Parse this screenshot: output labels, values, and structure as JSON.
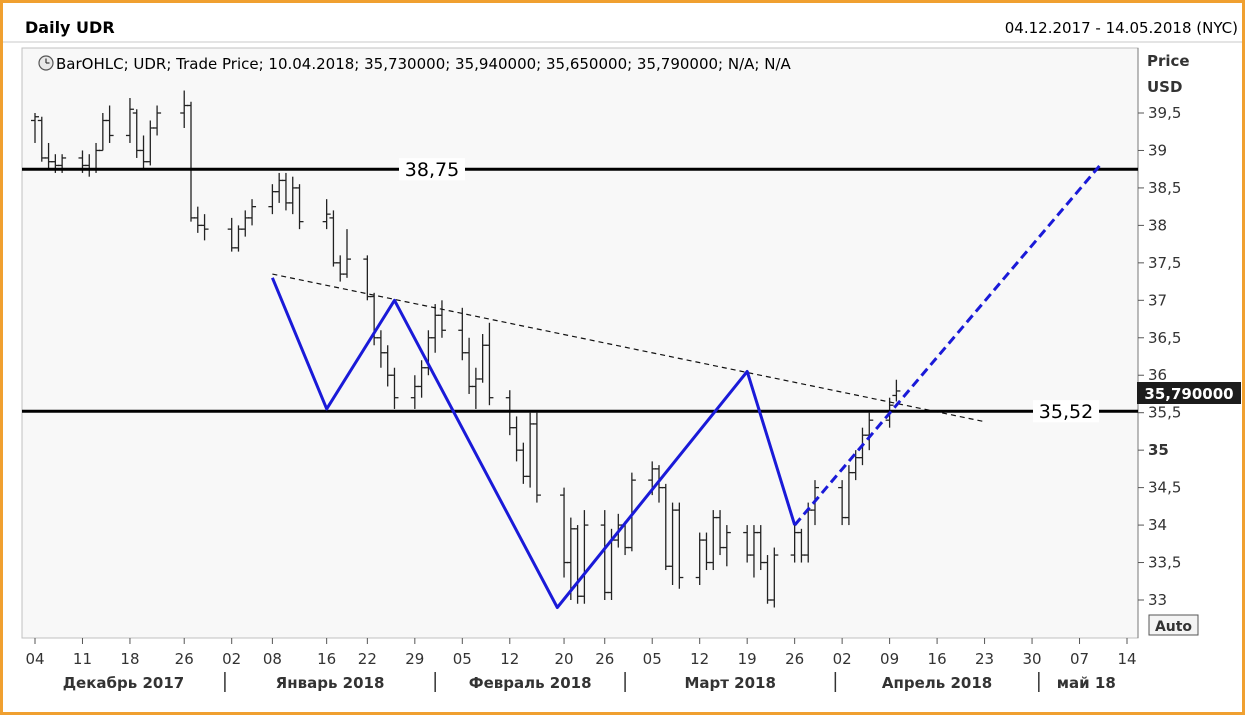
{
  "header": {
    "title": "Daily UDR",
    "date_range": "04.12.2017 - 14.05.2018 (NYC)"
  },
  "legend": {
    "icon": "clock-icon",
    "text": "BarOHLC; UDR; Trade Price; 10.04.2018; 35,730000; 35,940000; 35,650000; 35,790000; N/A; N/A"
  },
  "axis": {
    "price_label": "Price",
    "currency_label": "USD",
    "auto_label": "Auto",
    "last_price_label": "35,790000",
    "y_ticks": [
      {
        "value": 39.5,
        "label": "39,5",
        "bold": false
      },
      {
        "value": 39,
        "label": "39",
        "bold": false
      },
      {
        "value": 38.5,
        "label": "38,5",
        "bold": false
      },
      {
        "value": 38,
        "label": "38",
        "bold": false
      },
      {
        "value": 37.5,
        "label": "37,5",
        "bold": false
      },
      {
        "value": 37,
        "label": "37",
        "bold": false
      },
      {
        "value": 36.5,
        "label": "36,5",
        "bold": false
      },
      {
        "value": 36,
        "label": "36",
        "bold": false
      },
      {
        "value": 35.5,
        "label": "35,5",
        "bold": false
      },
      {
        "value": 35,
        "label": "35",
        "bold": true
      },
      {
        "value": 34.5,
        "label": "34,5",
        "bold": false
      },
      {
        "value": 34,
        "label": "34",
        "bold": false
      },
      {
        "value": 33.5,
        "label": "33,5",
        "bold": false
      },
      {
        "value": 33,
        "label": "33",
        "bold": false
      }
    ],
    "x_ticks": [
      {
        "date": "2017-12-04",
        "label": "04"
      },
      {
        "date": "2017-12-11",
        "label": "11"
      },
      {
        "date": "2017-12-18",
        "label": "18"
      },
      {
        "date": "2017-12-26",
        "label": "26"
      },
      {
        "date": "2018-01-02",
        "label": "02"
      },
      {
        "date": "2018-01-08",
        "label": "08"
      },
      {
        "date": "2018-01-16",
        "label": "16"
      },
      {
        "date": "2018-01-22",
        "label": "22"
      },
      {
        "date": "2018-01-29",
        "label": "29"
      },
      {
        "date": "2018-02-05",
        "label": "05"
      },
      {
        "date": "2018-02-12",
        "label": "12"
      },
      {
        "date": "2018-02-20",
        "label": "20"
      },
      {
        "date": "2018-02-26",
        "label": "26"
      },
      {
        "date": "2018-03-05",
        "label": "05"
      },
      {
        "date": "2018-03-12",
        "label": "12"
      },
      {
        "date": "2018-03-19",
        "label": "19"
      },
      {
        "date": "2018-03-26",
        "label": "26"
      },
      {
        "date": "2018-04-02",
        "label": "02"
      },
      {
        "date": "2018-04-09",
        "label": "09"
      },
      {
        "date": "2018-04-16",
        "label": "16"
      },
      {
        "date": "2018-04-23",
        "label": "23"
      },
      {
        "date": "2018-04-30",
        "label": "30"
      },
      {
        "date": "2018-05-07",
        "label": "07"
      },
      {
        "date": "2018-05-14",
        "label": "14"
      }
    ],
    "months": [
      {
        "label": "Декабрь 2017",
        "start": "2017-12-01",
        "end": "2018-01-01"
      },
      {
        "label": "Январь 2018",
        "start": "2018-01-01",
        "end": "2018-02-01"
      },
      {
        "label": "Февраль 2018",
        "start": "2018-02-01",
        "end": "2018-03-01"
      },
      {
        "label": "Март 2018",
        "start": "2018-03-01",
        "end": "2018-04-01"
      },
      {
        "label": "Апрель 2018",
        "start": "2018-04-01",
        "end": "2018-05-01"
      },
      {
        "label": "май 18",
        "start": "2018-05-01",
        "end": "2018-05-15"
      }
    ]
  },
  "colors": {
    "frame": "#f0a030",
    "bars": "#222222",
    "pattern": "#1a1ad8",
    "levels": "#000000"
  },
  "chart_data": {
    "type": "ohlc-bar",
    "instrument": "UDR",
    "x_range": [
      "2017-12-04",
      "2018-05-14"
    ],
    "ylim": [
      32.8,
      39.9
    ],
    "grid": false,
    "bars": [
      {
        "d": "2017-12-04",
        "o": 39.4,
        "h": 39.5,
        "l": 39.1,
        "c": 39.45
      },
      {
        "d": "2017-12-05",
        "o": 39.4,
        "h": 39.45,
        "l": 38.85,
        "c": 38.9
      },
      {
        "d": "2017-12-06",
        "o": 38.9,
        "h": 39.1,
        "l": 38.75,
        "c": 38.85
      },
      {
        "d": "2017-12-07",
        "o": 38.85,
        "h": 38.95,
        "l": 38.7,
        "c": 38.8
      },
      {
        "d": "2017-12-08",
        "o": 38.8,
        "h": 38.95,
        "l": 38.7,
        "c": 38.9
      },
      {
        "d": "2017-12-11",
        "o": 38.9,
        "h": 39.0,
        "l": 38.7,
        "c": 38.8
      },
      {
        "d": "2017-12-12",
        "o": 38.8,
        "h": 38.95,
        "l": 38.65,
        "c": 38.75
      },
      {
        "d": "2017-12-13",
        "o": 38.75,
        "h": 39.1,
        "l": 38.7,
        "c": 39.0
      },
      {
        "d": "2017-12-14",
        "o": 39.0,
        "h": 39.5,
        "l": 39.0,
        "c": 39.4
      },
      {
        "d": "2017-12-15",
        "o": 39.4,
        "h": 39.6,
        "l": 39.1,
        "c": 39.2
      },
      {
        "d": "2017-12-18",
        "o": 39.2,
        "h": 39.7,
        "l": 39.1,
        "c": 39.55
      },
      {
        "d": "2017-12-19",
        "o": 39.5,
        "h": 39.55,
        "l": 38.9,
        "c": 39.0
      },
      {
        "d": "2017-12-20",
        "o": 39.0,
        "h": 39.2,
        "l": 38.75,
        "c": 38.85
      },
      {
        "d": "2017-12-21",
        "o": 38.85,
        "h": 39.4,
        "l": 38.8,
        "c": 39.3
      },
      {
        "d": "2017-12-22",
        "o": 39.3,
        "h": 39.6,
        "l": 39.2,
        "c": 39.5
      },
      {
        "d": "2017-12-26",
        "o": 39.5,
        "h": 39.8,
        "l": 39.3,
        "c": 39.6
      },
      {
        "d": "2017-12-27",
        "o": 39.6,
        "h": 39.65,
        "l": 38.05,
        "c": 38.1
      },
      {
        "d": "2017-12-28",
        "o": 38.1,
        "h": 38.25,
        "l": 37.9,
        "c": 38.0
      },
      {
        "d": "2017-12-29",
        "o": 38.0,
        "h": 38.15,
        "l": 37.8,
        "c": 37.95
      },
      {
        "d": "2018-01-02",
        "o": 37.95,
        "h": 38.1,
        "l": 37.65,
        "c": 37.7
      },
      {
        "d": "2018-01-03",
        "o": 37.7,
        "h": 38.0,
        "l": 37.65,
        "c": 37.95
      },
      {
        "d": "2018-01-04",
        "o": 37.95,
        "h": 38.2,
        "l": 37.85,
        "c": 38.1
      },
      {
        "d": "2018-01-05",
        "o": 38.1,
        "h": 38.35,
        "l": 38.0,
        "c": 38.25
      },
      {
        "d": "2018-01-08",
        "o": 38.25,
        "h": 38.55,
        "l": 38.15,
        "c": 38.45
      },
      {
        "d": "2018-01-09",
        "o": 38.45,
        "h": 38.7,
        "l": 38.3,
        "c": 38.6
      },
      {
        "d": "2018-01-10",
        "o": 38.6,
        "h": 38.7,
        "l": 38.2,
        "c": 38.3
      },
      {
        "d": "2018-01-11",
        "o": 38.3,
        "h": 38.65,
        "l": 38.15,
        "c": 38.5
      },
      {
        "d": "2018-01-12",
        "o": 38.5,
        "h": 38.55,
        "l": 37.95,
        "c": 38.05
      },
      {
        "d": "2018-01-16",
        "o": 38.05,
        "h": 38.35,
        "l": 37.95,
        "c": 38.15
      },
      {
        "d": "2018-01-17",
        "o": 38.1,
        "h": 38.2,
        "l": 37.45,
        "c": 37.5
      },
      {
        "d": "2018-01-18",
        "o": 37.5,
        "h": 37.6,
        "l": 37.25,
        "c": 37.35
      },
      {
        "d": "2018-01-19",
        "o": 37.35,
        "h": 37.95,
        "l": 37.3,
        "c": 37.55
      },
      {
        "d": "2018-01-22",
        "o": 37.55,
        "h": 37.6,
        "l": 37.0,
        "c": 37.05
      },
      {
        "d": "2018-01-23",
        "o": 37.05,
        "h": 37.1,
        "l": 36.4,
        "c": 36.5
      },
      {
        "d": "2018-01-24",
        "o": 36.5,
        "h": 36.6,
        "l": 36.1,
        "c": 36.3
      },
      {
        "d": "2018-01-25",
        "o": 36.3,
        "h": 36.4,
        "l": 35.85,
        "c": 36.0
      },
      {
        "d": "2018-01-26",
        "o": 36.0,
        "h": 36.1,
        "l": 35.55,
        "c": 35.7
      },
      {
        "d": "2018-01-29",
        "o": 35.7,
        "h": 36.0,
        "l": 35.55,
        "c": 35.85
      },
      {
        "d": "2018-01-30",
        "o": 35.85,
        "h": 36.2,
        "l": 35.7,
        "c": 36.1
      },
      {
        "d": "2018-01-31",
        "o": 36.1,
        "h": 36.6,
        "l": 36.0,
        "c": 36.5
      },
      {
        "d": "2018-02-01",
        "o": 36.5,
        "h": 36.95,
        "l": 36.3,
        "c": 36.8
      },
      {
        "d": "2018-02-02",
        "o": 36.8,
        "h": 37.0,
        "l": 36.5,
        "c": 36.6
      },
      {
        "d": "2018-02-05",
        "o": 36.6,
        "h": 36.9,
        "l": 36.2,
        "c": 36.3
      },
      {
        "d": "2018-02-06",
        "o": 36.3,
        "h": 36.5,
        "l": 35.75,
        "c": 35.85
      },
      {
        "d": "2018-02-07",
        "o": 35.85,
        "h": 36.1,
        "l": 35.55,
        "c": 35.95
      },
      {
        "d": "2018-02-08",
        "o": 35.95,
        "h": 36.55,
        "l": 35.9,
        "c": 36.4
      },
      {
        "d": "2018-02-09",
        "o": 36.4,
        "h": 36.7,
        "l": 35.6,
        "c": 35.7
      },
      {
        "d": "2018-02-12",
        "o": 35.7,
        "h": 35.8,
        "l": 35.2,
        "c": 35.3
      },
      {
        "d": "2018-02-13",
        "o": 35.3,
        "h": 35.45,
        "l": 34.85,
        "c": 35.0
      },
      {
        "d": "2018-02-14",
        "o": 35.0,
        "h": 35.1,
        "l": 34.55,
        "c": 34.65
      },
      {
        "d": "2018-02-15",
        "o": 34.65,
        "h": 35.5,
        "l": 34.5,
        "c": 35.35
      },
      {
        "d": "2018-02-16",
        "o": 35.35,
        "h": 35.5,
        "l": 34.3,
        "c": 34.4
      },
      {
        "d": "2018-02-20",
        "o": 34.4,
        "h": 34.5,
        "l": 33.3,
        "c": 33.5
      },
      {
        "d": "2018-02-21",
        "o": 33.5,
        "h": 34.1,
        "l": 33.0,
        "c": 33.95
      },
      {
        "d": "2018-02-22",
        "o": 33.95,
        "h": 34.0,
        "l": 32.95,
        "c": 33.05
      },
      {
        "d": "2018-02-23",
        "o": 33.05,
        "h": 34.2,
        "l": 32.95,
        "c": 34.0
      },
      {
        "d": "2018-02-26",
        "o": 34.0,
        "h": 34.2,
        "l": 33.0,
        "c": 33.1
      },
      {
        "d": "2018-02-27",
        "o": 33.1,
        "h": 33.95,
        "l": 33.0,
        "c": 33.8
      },
      {
        "d": "2018-02-28",
        "o": 33.8,
        "h": 34.15,
        "l": 33.7,
        "c": 34.0
      },
      {
        "d": "2018-03-01",
        "o": 34.0,
        "h": 34.05,
        "l": 33.6,
        "c": 33.7
      },
      {
        "d": "2018-03-02",
        "o": 33.7,
        "h": 34.7,
        "l": 33.65,
        "c": 34.6
      },
      {
        "d": "2018-03-05",
        "o": 34.6,
        "h": 34.85,
        "l": 34.4,
        "c": 34.75
      },
      {
        "d": "2018-03-06",
        "o": 34.75,
        "h": 34.8,
        "l": 34.3,
        "c": 34.5
      },
      {
        "d": "2018-03-07",
        "o": 34.5,
        "h": 34.55,
        "l": 33.4,
        "c": 33.45
      },
      {
        "d": "2018-03-08",
        "o": 33.45,
        "h": 34.3,
        "l": 33.2,
        "c": 34.2
      },
      {
        "d": "2018-03-09",
        "o": 34.2,
        "h": 34.3,
        "l": 33.15,
        "c": 33.3
      },
      {
        "d": "2018-03-12",
        "o": 33.3,
        "h": 33.9,
        "l": 33.2,
        "c": 33.8
      },
      {
        "d": "2018-03-13",
        "o": 33.8,
        "h": 33.9,
        "l": 33.4,
        "c": 33.5
      },
      {
        "d": "2018-03-14",
        "o": 33.5,
        "h": 34.2,
        "l": 33.4,
        "c": 34.1
      },
      {
        "d": "2018-03-15",
        "o": 34.1,
        "h": 34.2,
        "l": 33.6,
        "c": 33.7
      },
      {
        "d": "2018-03-16",
        "o": 33.7,
        "h": 34.0,
        "l": 33.45,
        "c": 33.9
      },
      {
        "d": "2018-03-19",
        "o": 33.9,
        "h": 34.0,
        "l": 33.5,
        "c": 33.6
      },
      {
        "d": "2018-03-20",
        "o": 33.6,
        "h": 34.0,
        "l": 33.3,
        "c": 33.9
      },
      {
        "d": "2018-03-21",
        "o": 33.9,
        "h": 34.0,
        "l": 33.4,
        "c": 33.5
      },
      {
        "d": "2018-03-22",
        "o": 33.5,
        "h": 33.6,
        "l": 32.95,
        "c": 33.0
      },
      {
        "d": "2018-03-23",
        "o": 33.0,
        "h": 33.7,
        "l": 32.9,
        "c": 33.6
      },
      {
        "d": "2018-03-26",
        "o": 33.6,
        "h": 34.0,
        "l": 33.5,
        "c": 33.9
      },
      {
        "d": "2018-03-27",
        "o": 33.9,
        "h": 33.95,
        "l": 33.5,
        "c": 33.6
      },
      {
        "d": "2018-03-28",
        "o": 33.6,
        "h": 34.3,
        "l": 33.5,
        "c": 34.2
      },
      {
        "d": "2018-03-29",
        "o": 34.2,
        "h": 34.6,
        "l": 34.0,
        "c": 34.5
      },
      {
        "d": "2018-04-02",
        "o": 34.5,
        "h": 34.6,
        "l": 34.0,
        "c": 34.1
      },
      {
        "d": "2018-04-03",
        "o": 34.1,
        "h": 34.8,
        "l": 34.0,
        "c": 34.7
      },
      {
        "d": "2018-04-04",
        "o": 34.7,
        "h": 35.0,
        "l": 34.6,
        "c": 34.9
      },
      {
        "d": "2018-04-05",
        "o": 34.9,
        "h": 35.3,
        "l": 34.8,
        "c": 35.2
      },
      {
        "d": "2018-04-06",
        "o": 35.2,
        "h": 35.5,
        "l": 35.0,
        "c": 35.4
      },
      {
        "d": "2018-04-09",
        "o": 35.4,
        "h": 35.7,
        "l": 35.3,
        "c": 35.6
      },
      {
        "d": "2018-04-10",
        "o": 35.73,
        "h": 35.94,
        "l": 35.65,
        "c": 35.79
      }
    ]
  },
  "annotations": {
    "upper_level": {
      "value": 38.75,
      "label": "38,75"
    },
    "lower_level": {
      "value": 35.52,
      "label": "35,52"
    },
    "trendline": {
      "from": {
        "date": "2018-01-08",
        "price": 37.35
      },
      "to": {
        "date": "2018-04-23",
        "price": 35.38
      }
    },
    "pattern": [
      {
        "date": "2018-01-08",
        "price": 37.3
      },
      {
        "date": "2018-01-16",
        "price": 35.55
      },
      {
        "date": "2018-01-26",
        "price": 37.0
      },
      {
        "date": "2018-02-19",
        "price": 32.9
      },
      {
        "date": "2018-03-19",
        "price": 36.05
      },
      {
        "date": "2018-03-26",
        "price": 34.0
      }
    ],
    "projection": [
      {
        "date": "2018-03-26",
        "price": 34.0
      },
      {
        "date": "2018-04-10",
        "price": 35.6
      },
      {
        "date": "2018-05-10",
        "price": 38.8
      }
    ]
  }
}
